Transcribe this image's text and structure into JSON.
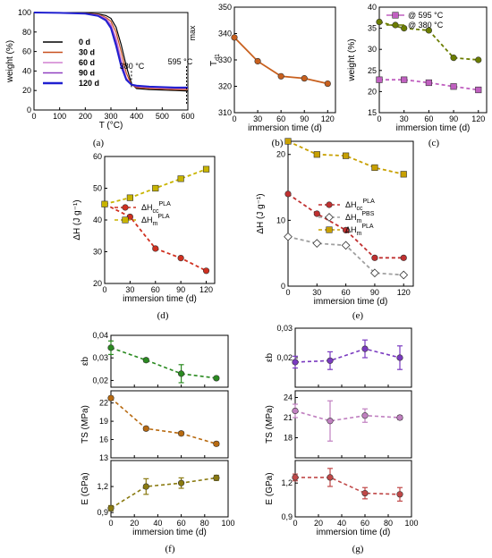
{
  "chart_data": [
    {
      "panel": "a",
      "type": "line",
      "caption": "(a)",
      "xlabel": "T (°C)",
      "ylabel": "weight  (%)",
      "xlim": [
        0,
        600
      ],
      "ylim": [
        0,
        100
      ],
      "xticks": [
        "0",
        "100",
        "200",
        "300",
        "400",
        "500",
        "600"
      ],
      "yticks": [
        "0",
        "20",
        "40",
        "60",
        "80",
        "100"
      ],
      "annotations": [
        "380 °C",
        "595 °C"
      ],
      "series": [
        {
          "name": "0 d",
          "color": "#000000",
          "x": [
            0,
            100,
            200,
            250,
            280,
            300,
            320,
            340,
            360,
            380,
            400,
            450,
            500,
            550,
            600
          ],
          "y": [
            100,
            99.7,
            99.3,
            98.5,
            97,
            94,
            85,
            67,
            45,
            27,
            22,
            21,
            20.5,
            20,
            19.5
          ]
        },
        {
          "name": "30 d",
          "color": "#c8501e",
          "x": [
            0,
            100,
            200,
            250,
            280,
            300,
            320,
            340,
            360,
            380,
            400,
            450,
            500,
            550,
            600
          ],
          "y": [
            100,
            99.7,
            99.2,
            98,
            95,
            91,
            80,
            60,
            38,
            26,
            23,
            22,
            21.5,
            21,
            21
          ]
        },
        {
          "name": "60 d",
          "color": "#d080d0",
          "x": [
            0,
            100,
            200,
            250,
            280,
            300,
            320,
            340,
            360,
            380,
            400,
            450,
            500,
            550,
            600
          ],
          "y": [
            100,
            99.7,
            99,
            97.5,
            94,
            88,
            74,
            52,
            33,
            26,
            24,
            23,
            22.5,
            22,
            22
          ]
        },
        {
          "name": "90 d",
          "color": "#9040c0",
          "x": [
            0,
            100,
            200,
            250,
            280,
            300,
            320,
            340,
            360,
            380,
            400,
            450,
            500,
            550,
            600
          ],
          "y": [
            100,
            99.7,
            99,
            97,
            93,
            86,
            70,
            48,
            32,
            26,
            24,
            23.5,
            23,
            22.5,
            22.5
          ]
        },
        {
          "name": "120 d",
          "color": "#2020d0",
          "x": [
            0,
            100,
            200,
            250,
            280,
            300,
            320,
            340,
            360,
            380,
            400,
            450,
            500,
            550,
            600
          ],
          "y": [
            100,
            99.6,
            98.8,
            96.5,
            92,
            84,
            66,
            45,
            31,
            26,
            25,
            24,
            23.5,
            23,
            23
          ]
        }
      ]
    },
    {
      "panel": "b",
      "type": "line",
      "caption": "(b)",
      "xlabel": "immersion time (d)",
      "ylabel": "T",
      "ylabel_sub": "d1",
      "ylabel_sup": "max",
      "xlim": [
        0,
        130
      ],
      "ylim": [
        310,
        350
      ],
      "xticks": [
        "0",
        "30",
        "60",
        "90",
        "120"
      ],
      "yticks": [
        "310",
        "320",
        "330",
        "340",
        "350"
      ],
      "series": [
        {
          "color": "#c8601e",
          "x": [
            0,
            30,
            60,
            90,
            120
          ],
          "y": [
            338.5,
            329.5,
            323.8,
            323,
            321
          ]
        }
      ]
    },
    {
      "panel": "c",
      "type": "line",
      "caption": "(c)",
      "xlabel": "immersion time (d)",
      "ylabel": "weight (%)",
      "xlim": [
        0,
        130
      ],
      "ylim": [
        15,
        40
      ],
      "xticks": [
        "0",
        "30",
        "60",
        "90",
        "120"
      ],
      "yticks": [
        "15",
        "20",
        "25",
        "30",
        "35",
        "40"
      ],
      "series": [
        {
          "name": "@ 595 °C",
          "marker": "square",
          "color": "#c060c0",
          "x": [
            0,
            30,
            60,
            90,
            120
          ],
          "y": [
            22.8,
            22.8,
            22.1,
            21.2,
            20.4
          ]
        },
        {
          "name": "@ 380 °C",
          "marker": "circle",
          "color": "#6b7d00",
          "x": [
            0,
            30,
            60,
            90,
            120
          ],
          "y": [
            36.5,
            35,
            34.5,
            28,
            27.5
          ]
        }
      ]
    },
    {
      "panel": "d",
      "type": "line",
      "caption": "(d)",
      "xlabel": "immersion time (d)",
      "ylabel": "ΔH (J g⁻¹)",
      "xlim": [
        0,
        130
      ],
      "ylim": [
        20,
        60
      ],
      "xticks": [
        "0",
        "30",
        "60",
        "90",
        "120"
      ],
      "yticks": [
        "20",
        "30",
        "40",
        "50",
        "60"
      ],
      "series": [
        {
          "name": "ΔHcc",
          "sub": "cc",
          "sup": "PLA",
          "marker": "circle",
          "color": "#d03020",
          "x": [
            0,
            30,
            60,
            90,
            120
          ],
          "y": [
            45,
            41,
            31,
            28,
            24
          ]
        },
        {
          "name": "ΔHm",
          "sub": "m",
          "sup": "PLA",
          "marker": "square",
          "color": "#c8b400",
          "x": [
            0,
            30,
            60,
            90,
            120
          ],
          "y": [
            45,
            47,
            50,
            53,
            56
          ]
        }
      ]
    },
    {
      "panel": "e",
      "type": "line",
      "caption": "(e)",
      "xlabel": "immersion time (d)",
      "ylabel": "ΔH (J g⁻¹)",
      "xlim": [
        0,
        130
      ],
      "ylim": [
        0,
        22
      ],
      "xticks": [
        "0",
        "30",
        "60",
        "90",
        "120"
      ],
      "yticks": [
        "0",
        "10",
        "20"
      ],
      "series": [
        {
          "name": "ΔHcc",
          "sub": "cc",
          "sup": "PLA",
          "marker": "circle",
          "color": "#c03030",
          "x": [
            0,
            30,
            60,
            90,
            120
          ],
          "y": [
            14,
            11,
            8.5,
            4.3,
            4.3
          ]
        },
        {
          "name": "ΔHm",
          "sub": "m",
          "sup": "PBS",
          "marker": "diamond",
          "color": "#a0a0a0",
          "x": [
            0,
            30,
            60,
            90,
            120
          ],
          "y": [
            7.5,
            6.5,
            6.2,
            2,
            1.7
          ]
        },
        {
          "name": "ΔHm",
          "sub": "m",
          "sup": "PLA",
          "marker": "square",
          "color": "#c8a000",
          "x": [
            0,
            30,
            60,
            90,
            120
          ],
          "y": [
            22,
            20,
            19.8,
            18,
            17
          ]
        }
      ]
    },
    {
      "panel": "f",
      "caption": "(f)",
      "type": "scatter",
      "xlabel": "immersion time (d)",
      "xlim": [
        0,
        100
      ],
      "xticks": [
        "0",
        "20",
        "40",
        "60",
        "80",
        "100"
      ],
      "subplots": [
        {
          "ylabel": "εb",
          "ylim": [
            0.017,
            0.04
          ],
          "yticks": [
            "0,02",
            "0,03",
            "0,04"
          ],
          "tickvals": [
            0.02,
            0.03,
            0.04
          ],
          "color": "#2a8a20",
          "x": [
            0,
            30,
            60,
            90
          ],
          "y": [
            0.0345,
            0.029,
            0.023,
            0.021
          ],
          "err": [
            0.003,
            0.0008,
            0.004,
            0.0006
          ]
        },
        {
          "ylabel": "TS (MPa)",
          "ylim": [
            13,
            24
          ],
          "yticks": [
            "13",
            "16",
            "19",
            "22"
          ],
          "tickvals": [
            13,
            16,
            19,
            22
          ],
          "color": "#b86a10",
          "x": [
            0,
            30,
            60,
            90
          ],
          "y": [
            22.8,
            17.8,
            17,
            15.3
          ],
          "err": [
            0.3,
            0.3,
            0.3,
            0.3
          ]
        },
        {
          "ylabel": "E (GPa)",
          "ylim": [
            0.85,
            1.5
          ],
          "yticks": [
            "0,9",
            "1,2"
          ],
          "tickvals": [
            0.9,
            1.2
          ],
          "color": "#8a7a10",
          "x": [
            0,
            30,
            60,
            90
          ],
          "y": [
            0.95,
            1.2,
            1.24,
            1.3
          ],
          "err": [
            0.03,
            0.09,
            0.06,
            0.03
          ]
        }
      ]
    },
    {
      "panel": "g",
      "caption": "(g)",
      "type": "scatter",
      "xlabel": "immersion time (d)",
      "xlim": [
        0,
        100
      ],
      "xticks": [
        "0",
        "20",
        "40",
        "60",
        "80",
        "100"
      ],
      "subplots": [
        {
          "ylabel": "εb",
          "ylim": [
            0.01,
            0.03
          ],
          "yticks": [
            "0,02",
            "0,03"
          ],
          "tickvals": [
            0.02,
            0.03
          ],
          "color": "#7a3ac0",
          "x": [
            0,
            30,
            60,
            90
          ],
          "y": [
            0.0185,
            0.019,
            0.023,
            0.02
          ],
          "err": [
            0.002,
            0.003,
            0.003,
            0.004
          ]
        },
        {
          "ylabel": "TS (MPa)",
          "ylim": [
            15,
            25
          ],
          "yticks": [
            "18",
            "21",
            "24"
          ],
          "tickvals": [
            18,
            21,
            24
          ],
          "color": "#c080c0",
          "x": [
            0,
            30,
            60,
            90
          ],
          "y": [
            22,
            20.5,
            21.3,
            21
          ],
          "err": [
            1,
            3,
            1,
            0.3
          ]
        },
        {
          "ylabel": "E (GPa)",
          "ylim": [
            0.9,
            1.4
          ],
          "yticks": [
            "0,9",
            "1,2"
          ],
          "tickvals": [
            0.9,
            1.2
          ],
          "color": "#c04848",
          "x": [
            0,
            30,
            60,
            90
          ],
          "y": [
            1.25,
            1.25,
            1.11,
            1.1
          ],
          "err": [
            0.03,
            0.08,
            0.05,
            0.06
          ]
        }
      ]
    }
  ]
}
